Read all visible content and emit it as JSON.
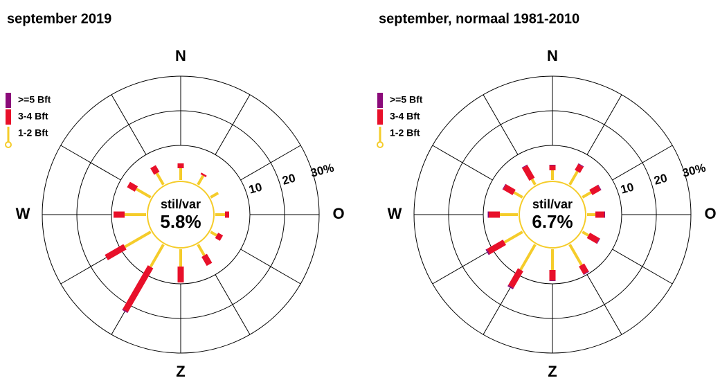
{
  "chart_data": [
    {
      "type": "windrose",
      "title": "september 2019",
      "categories": [
        "N",
        null,
        null,
        "O",
        null,
        null,
        "Z",
        null,
        null,
        "W",
        null,
        null
      ],
      "calm_label": "stil/var",
      "calm_value": 5.8,
      "calm_value_label": "5.8%",
      "rlim": [
        0,
        30
      ],
      "rticks": [
        10,
        20,
        {
          "value": 30,
          "label": "30%"
        }
      ],
      "series": [
        {
          "name": ">=5 Bft",
          "color": "#8b0a7a",
          "values": [
            0,
            0,
            0,
            0,
            0,
            0,
            0,
            0.3,
            0,
            0,
            0,
            0
          ]
        },
        {
          "name": "3-4 Bft",
          "color": "#e8102a",
          "values": [
            1.4,
            0.5,
            0,
            1.2,
            1.6,
            3,
            4.6,
            14.6,
            6.2,
            3.2,
            2.6,
            2.2
          ]
        },
        {
          "name": "1-2 Bft",
          "color": "#f5cc2a",
          "values": [
            3.4,
            3,
            2.5,
            2.8,
            2,
            3.6,
            5,
            7.4,
            8.6,
            6.2,
            4.8,
            3.8
          ]
        }
      ]
    },
    {
      "type": "windrose",
      "title": "september, normaal 1981-2010",
      "categories": [
        "N",
        null,
        null,
        "O",
        null,
        null,
        "Z",
        null,
        null,
        "W",
        null,
        null
      ],
      "calm_label": "stil/var",
      "calm_value": 6.7,
      "calm_value_label": "6.7%",
      "rlim": [
        0,
        30
      ],
      "rticks": [
        10,
        20,
        {
          "value": 30,
          "label": "30%"
        }
      ],
      "series": [
        {
          "name": ">=5 Bft",
          "color": "#8b0a7a",
          "values": [
            0.2,
            0.2,
            0.2,
            0.2,
            0.2,
            0.2,
            0.2,
            0.4,
            0.4,
            0.3,
            0.2,
            0.2
          ]
        },
        {
          "name": "3-4 Bft",
          "color": "#e8102a",
          "values": [
            1.4,
            2,
            2.8,
            2.6,
            3.2,
            2.6,
            3,
            5.6,
            5.4,
            3.2,
            3.2,
            4.2
          ]
        },
        {
          "name": "1-2 Bft",
          "color": "#f5cc2a",
          "values": [
            2.8,
            4.4,
            2.8,
            2.4,
            2,
            6.8,
            6,
            8.4,
            6,
            5.2,
            2.8,
            1.8
          ]
        }
      ]
    }
  ]
}
